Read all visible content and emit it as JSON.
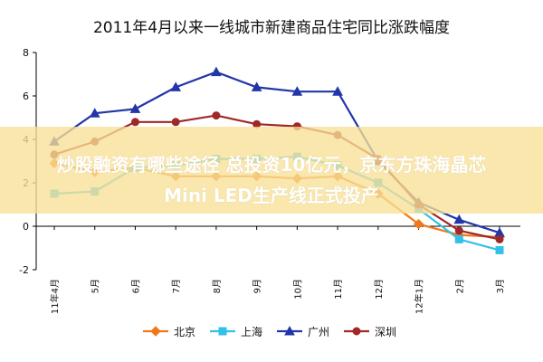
{
  "chart_data": {
    "type": "line",
    "title": "2011年4月以来一线城市新建商品住宅同比涨跌幅度",
    "categories": [
      "11年4月",
      "5月",
      "6月",
      "7月",
      "8月",
      "9月",
      "10月",
      "11月",
      "12月",
      "12年1月",
      "2月",
      "3月"
    ],
    "ylim": [
      -2,
      8
    ],
    "yticks": [
      -2,
      0,
      2,
      4,
      6,
      8
    ],
    "series": [
      {
        "name": "北京",
        "color": "#f07818",
        "marker": "diamond",
        "values": [
          2.9,
          2.5,
          2.7,
          2.3,
          2.3,
          2.3,
          2.2,
          2.3,
          1.5,
          0.1,
          -0.4,
          -0.5
        ]
      },
      {
        "name": "上海",
        "color": "#33c0e8",
        "marker": "square",
        "values": [
          1.5,
          1.6,
          2.7,
          2.8,
          3.1,
          3.1,
          3.2,
          2.8,
          2.0,
          0.8,
          -0.6,
          -1.1
        ]
      },
      {
        "name": "广州",
        "color": "#2236a8",
        "marker": "triangle",
        "values": [
          3.9,
          5.2,
          5.4,
          6.4,
          7.1,
          6.4,
          6.2,
          6.2,
          3.0,
          1.1,
          0.3,
          -0.3
        ]
      },
      {
        "name": "深圳",
        "color": "#a02828",
        "marker": "circle",
        "values": [
          3.3,
          3.9,
          4.8,
          4.8,
          5.1,
          4.7,
          4.6,
          4.2,
          3.1,
          1.0,
          -0.2,
          -0.6
        ]
      }
    ],
    "legend_position": "bottom",
    "grid": false
  },
  "overlay": {
    "line1": "炒股融资有哪些途径 总投资10亿元，京东方珠海晶芯",
    "line2": "Mini LED生产线正式投产"
  }
}
